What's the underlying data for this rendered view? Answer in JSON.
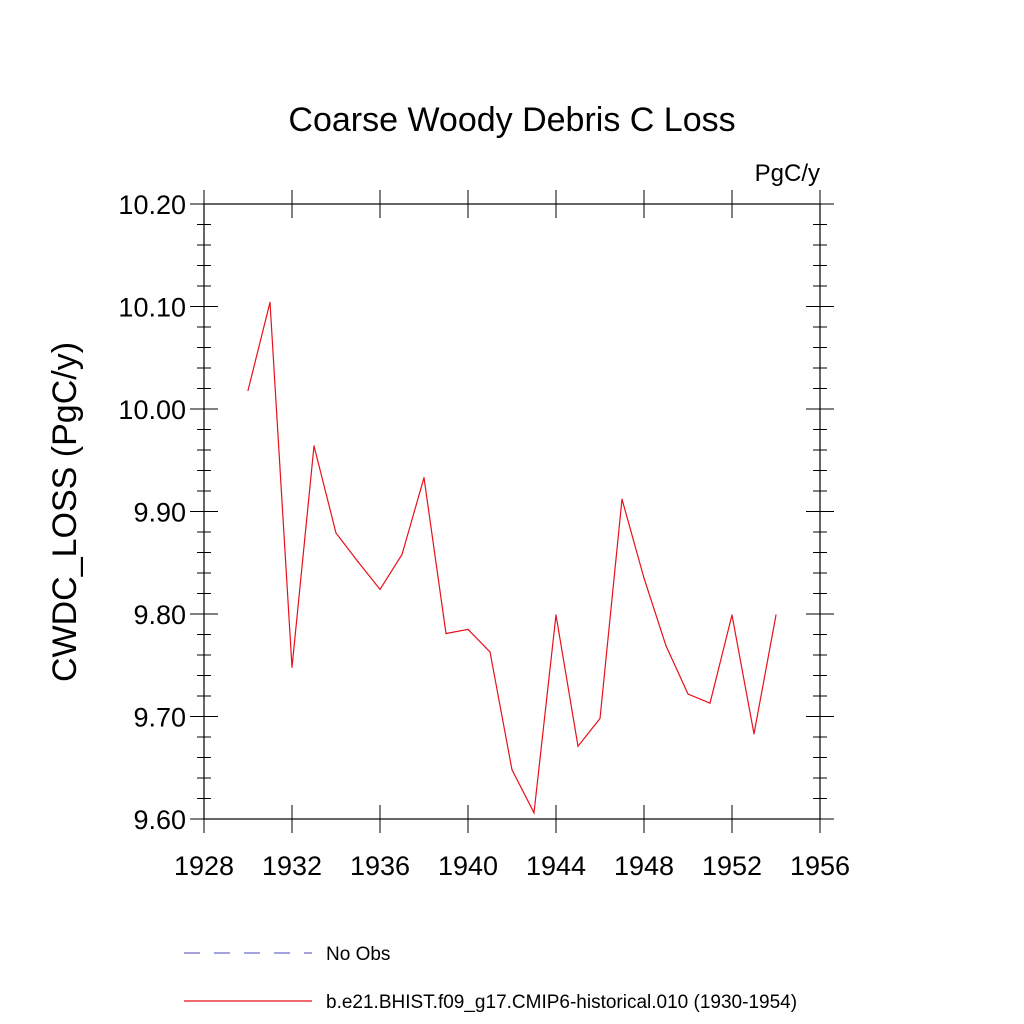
{
  "chart_data": {
    "type": "line",
    "title": "Coarse Woody Debris C Loss",
    "units_label": "PgC/y",
    "ylabel": "CWDC_LOSS  (PgC/y)",
    "xlabel": "",
    "xlim": [
      1928,
      1956
    ],
    "ylim": [
      9.6,
      10.2
    ],
    "x_ticks": [
      "1928",
      "1932",
      "1936",
      "1940",
      "1944",
      "1948",
      "1952",
      "1956"
    ],
    "y_ticks": [
      "9.60",
      "9.70",
      "9.80",
      "9.90",
      "10.00",
      "10.10",
      "10.20"
    ],
    "grid": false,
    "legend_position": "bottom",
    "series": [
      {
        "name": "No Obs",
        "color": "#6e6ecc",
        "dash": "dashed",
        "x": [],
        "y": []
      },
      {
        "name": "b.e21.BHIST.f09_g17.CMIP6-historical.010 (1930-1954)",
        "color": "#e8101a",
        "dash": "solid",
        "x": [
          1930,
          1931,
          1932,
          1933,
          1934,
          1935,
          1936,
          1937,
          1938,
          1939,
          1940,
          1941,
          1942,
          1943,
          1944,
          1945,
          1946,
          1947,
          1948,
          1949,
          1950,
          1951,
          1952,
          1953,
          1954
        ],
        "y": [
          10.018,
          10.104,
          9.748,
          9.964,
          9.879,
          9.851,
          9.824,
          9.858,
          9.933,
          9.781,
          9.785,
          9.763,
          9.648,
          9.606,
          9.799,
          9.671,
          9.698,
          9.912,
          9.835,
          9.769,
          9.722,
          9.713,
          9.799,
          9.683,
          9.799
        ]
      }
    ]
  }
}
